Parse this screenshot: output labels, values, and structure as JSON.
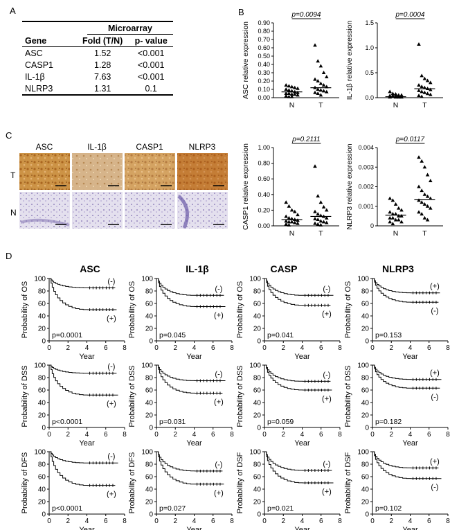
{
  "panels": {
    "a": "A",
    "b": "B",
    "c": "C",
    "d": "D"
  },
  "table": {
    "group_header": "Microarray",
    "columns": [
      "Gene",
      "Fold (T/N)",
      "p- value"
    ],
    "rows": [
      [
        "ASC",
        "1.52",
        "<0.001"
      ],
      [
        "CASP1",
        "1.28",
        "<0.001"
      ],
      [
        "IL-1β",
        "7.63",
        "<0.001"
      ],
      [
        "NLRP3",
        "1.31",
        "0.1"
      ]
    ]
  },
  "ihc": {
    "columns": [
      "ASC",
      "IL-1β",
      "CASP1",
      "NLRP3"
    ],
    "rows": [
      "T",
      "N"
    ],
    "colors": {
      "tumor": "#c98a3c",
      "tumor_dark": "#b56a25",
      "normal": "#d8d2e6",
      "normal_stain": "#8a78b4"
    }
  },
  "chart_data": {
    "scatter": [
      {
        "type": "scatter",
        "ylabel": "ASC relative expression",
        "pvalue": "p=0.0094",
        "categories": [
          "N",
          "T"
        ],
        "yticks": [
          "0.00",
          "0.10",
          "0.20",
          "0.30",
          "0.40",
          "0.50",
          "0.60",
          "0.70",
          "0.80",
          "0.90"
        ],
        "ylim": [
          0,
          0.9
        ],
        "medians": [
          0.07,
          0.12
        ],
        "N": [
          0.15,
          0.14,
          0.13,
          0.12,
          0.11,
          0.1,
          0.09,
          0.08,
          0.07,
          0.06,
          0.05,
          0.05,
          0.04,
          0.04,
          0.03,
          0.02,
          0.01,
          0.01
        ],
        "T": [
          0.63,
          0.44,
          0.38,
          0.3,
          0.25,
          0.22,
          0.2,
          0.17,
          0.15,
          0.13,
          0.12,
          0.1,
          0.09,
          0.08,
          0.07,
          0.06,
          0.05,
          0.03
        ]
      },
      {
        "type": "scatter",
        "ylabel": "IL-1β relative expression",
        "pvalue": "p=0.0004",
        "categories": [
          "N",
          "T"
        ],
        "yticks": [
          "0.0",
          "0.5",
          "1.0",
          "1.5"
        ],
        "ylim": [
          0,
          1.5
        ],
        "medians": [
          0.02,
          0.18
        ],
        "N": [
          0.12,
          0.08,
          0.07,
          0.05,
          0.05,
          0.04,
          0.04,
          0.03,
          0.03,
          0.02,
          0.02,
          0.02,
          0.01,
          0.01,
          0.01,
          0.01
        ],
        "T": [
          1.07,
          0.44,
          0.38,
          0.34,
          0.3,
          0.25,
          0.22,
          0.2,
          0.18,
          0.16,
          0.14,
          0.12,
          0.1,
          0.08,
          0.06,
          0.04,
          0.02
        ]
      },
      {
        "type": "scatter",
        "ylabel": "CASP1 relative expression",
        "pvalue": "p=0.2111",
        "categories": [
          "N",
          "T"
        ],
        "yticks": [
          "0.00",
          "0.20",
          "0.40",
          "0.60",
          "0.80",
          "1.00"
        ],
        "ylim": [
          0,
          1.0
        ],
        "medians": [
          0.08,
          0.12
        ],
        "N": [
          0.3,
          0.25,
          0.2,
          0.18,
          0.14,
          0.12,
          0.1,
          0.09,
          0.08,
          0.07,
          0.06,
          0.05,
          0.05,
          0.04,
          0.03,
          0.02,
          0.01
        ],
        "T": [
          0.76,
          0.38,
          0.3,
          0.24,
          0.2,
          0.18,
          0.15,
          0.13,
          0.12,
          0.1,
          0.09,
          0.08,
          0.06,
          0.05,
          0.04,
          0.03,
          0.02,
          0.01
        ]
      },
      {
        "type": "scatter",
        "ylabel": "NLRP3 relative expression",
        "pvalue": "p=0.0117",
        "categories": [
          "N",
          "T"
        ],
        "yticks": [
          "0",
          "0.001",
          "0.002",
          "0.003",
          "0.004"
        ],
        "ylim": [
          0,
          0.004
        ],
        "medians": [
          0.00055,
          0.00135
        ],
        "N": [
          0.0014,
          0.0013,
          0.0011,
          0.0009,
          0.0008,
          0.0007,
          0.0006,
          0.0006,
          0.0005,
          0.0005,
          0.0004,
          0.0004,
          0.0003,
          0.0003,
          0.0002,
          0.0002,
          0.0001
        ],
        "T": [
          0.0035,
          0.0033,
          0.003,
          0.0026,
          0.0023,
          0.002,
          0.0018,
          0.0016,
          0.0015,
          0.0014,
          0.0013,
          0.0012,
          0.0011,
          0.001,
          0.0009,
          0.0007,
          0.0006,
          0.0004,
          0.0003
        ]
      }
    ],
    "km": {
      "column_titles": [
        "ASC",
        "IL-1β",
        "CASP",
        "NLRP3"
      ],
      "xticks": [
        "0",
        "2",
        "4",
        "6",
        "8"
      ],
      "yticks": [
        "0",
        "20",
        "40",
        "60",
        "80",
        "100"
      ],
      "xlabel": "Year",
      "xlim": [
        0,
        8
      ],
      "ylim": [
        0,
        100
      ],
      "minus_label": "(-)",
      "plus_label": "(+)",
      "plots": [
        {
          "ylabel": "Probability of OS",
          "pvalue": "p=0.0001",
          "minus_plateau": 85,
          "plus_plateau": 50,
          "minus_above": true
        },
        {
          "ylabel": "Probability of OS",
          "pvalue": "p=0.045",
          "minus_plateau": 73,
          "plus_plateau": 55,
          "minus_above": true
        },
        {
          "ylabel": "Probability of OS",
          "pvalue": "p=0.041",
          "minus_plateau": 73,
          "plus_plateau": 57,
          "minus_above": true
        },
        {
          "ylabel": "Probability of OS",
          "pvalue": "p=0.153",
          "minus_plateau": 62,
          "plus_plateau": 77,
          "minus_above": false
        },
        {
          "ylabel": "Probability of DSS",
          "pvalue": "p<0.0001",
          "minus_plateau": 87,
          "plus_plateau": 52,
          "minus_above": true
        },
        {
          "ylabel": "Probability of DSS",
          "pvalue": "p=0.031",
          "minus_plateau": 75,
          "plus_plateau": 55,
          "minus_above": true
        },
        {
          "ylabel": "Probability of DSS",
          "pvalue": "p=0.059",
          "minus_plateau": 74,
          "plus_plateau": 60,
          "minus_above": true
        },
        {
          "ylabel": "Probability of DSS",
          "pvalue": "p=0.182",
          "minus_plateau": 63,
          "plus_plateau": 77,
          "minus_above": false
        },
        {
          "ylabel": "Probability of DFS",
          "pvalue": "p<0.0001",
          "minus_plateau": 82,
          "plus_plateau": 46,
          "minus_above": true
        },
        {
          "ylabel": "Probability of DFS",
          "pvalue": "p=0.027",
          "minus_plateau": 69,
          "plus_plateau": 48,
          "minus_above": true
        },
        {
          "ylabel": "Probability of DSF",
          "pvalue": "p=0.021",
          "minus_plateau": 70,
          "plus_plateau": 50,
          "minus_above": true
        },
        {
          "ylabel": "Probability of DSF",
          "pvalue": "p=0.102",
          "minus_plateau": 57,
          "plus_plateau": 74,
          "minus_above": false
        }
      ]
    }
  }
}
